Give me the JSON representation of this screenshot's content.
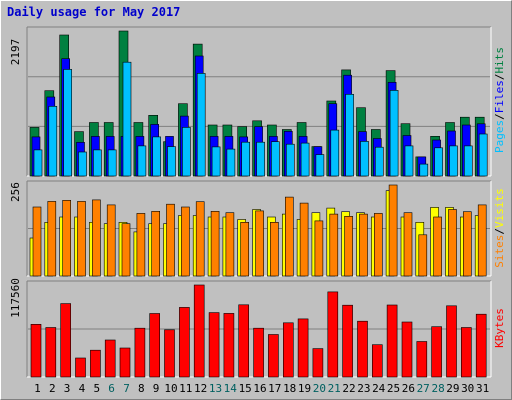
{
  "title": "Daily usage for May 2017",
  "colors": {
    "hits": "#008040",
    "files": "#0000ff",
    "pages": "#00c0ff",
    "visits": "#ffff00",
    "sites": "#ff8000",
    "kbytes": "#ff0000",
    "weekday_label": "#000000",
    "weekend_label": "#006060",
    "grid": "#808080"
  },
  "icons": {
    "separator": "slash"
  },
  "chart_data": [
    {
      "type": "bar",
      "name": "hits-files-pages",
      "max_label": "2197",
      "ylim": [
        0,
        2197
      ],
      "categories": [
        "1",
        "2",
        "3",
        "4",
        "5",
        "6",
        "7",
        "8",
        "9",
        "10",
        "11",
        "12",
        "13",
        "14",
        "15",
        "16",
        "17",
        "18",
        "19",
        "20",
        "21",
        "22",
        "23",
        "24",
        "25",
        "26",
        "27",
        "28",
        "29",
        "30",
        "31"
      ],
      "series": [
        {
          "name": "Hits",
          "values": [
            736,
            1293,
            2136,
            673,
            810,
            810,
            2197,
            810,
            919,
            519,
            1096,
            1998,
            772,
            772,
            749,
            837,
            772,
            704,
            810,
            446,
            1136,
            1608,
            1035,
            704,
            1597,
            793,
            290,
            602,
            810,
            891,
            891
          ]
        },
        {
          "name": "Files",
          "values": [
            593,
            1197,
            1778,
            511,
            600,
            600,
            600,
            600,
            782,
            600,
            907,
            1818,
            600,
            600,
            593,
            749,
            600,
            677,
            600,
            446,
            1096,
            1527,
            673,
            568,
            1419,
            613,
            290,
            546,
            682,
            773,
            791
          ]
        },
        {
          "name": "Pages",
          "values": [
            395,
            1056,
            1615,
            364,
            395,
            395,
            1725,
            456,
            593,
            446,
            736,
            1555,
            441,
            407,
            512,
            512,
            519,
            482,
            499,
            325,
            695,
            1238,
            525,
            436,
            1297,
            456,
            181,
            428,
            456,
            456,
            637
          ]
        }
      ]
    },
    {
      "type": "bar",
      "name": "visits-sites",
      "max_label": "256",
      "ylim": [
        0,
        256
      ],
      "categories": [
        "1",
        "2",
        "3",
        "4",
        "5",
        "6",
        "7",
        "8",
        "9",
        "10",
        "11",
        "12",
        "13",
        "14",
        "15",
        "16",
        "17",
        "18",
        "19",
        "20",
        "21",
        "22",
        "23",
        "24",
        "25",
        "26",
        "27",
        "28",
        "29",
        "30",
        "31"
      ],
      "series": [
        {
          "name": "Visits",
          "values": [
            107,
            151,
            166,
            166,
            151,
            147,
            151,
            124,
            147,
            147,
            170,
            170,
            166,
            166,
            159,
            187,
            166,
            174,
            159,
            178,
            191,
            181,
            178,
            166,
            240,
            166,
            151,
            193,
            193,
            166,
            170
          ]
        },
        {
          "name": "Sites",
          "values": [
            194,
            210,
            213,
            210,
            214,
            200,
            147,
            176,
            182,
            202,
            194,
            209,
            182,
            178,
            151,
            183,
            151,
            222,
            205,
            155,
            174,
            168,
            174,
            176,
            256,
            178,
            116,
            166,
            187,
            181,
            200
          ]
        }
      ]
    },
    {
      "type": "bar",
      "name": "kbytes",
      "max_label": "117560",
      "ylim": [
        0,
        117560
      ],
      "categories": [
        "1",
        "2",
        "3",
        "4",
        "5",
        "6",
        "7",
        "8",
        "9",
        "10",
        "11",
        "12",
        "13",
        "14",
        "15",
        "16",
        "17",
        "18",
        "19",
        "20",
        "21",
        "22",
        "23",
        "24",
        "25",
        "26",
        "27",
        "28",
        "29",
        "30",
        "31"
      ],
      "series": [
        {
          "name": "KBytes",
          "values": [
            67300,
            63300,
            93800,
            24300,
            34300,
            47300,
            37000,
            62300,
            81100,
            60300,
            88900,
            117560,
            82300,
            81300,
            92200,
            62300,
            54300,
            69300,
            74300,
            36300,
            108800,
            91800,
            71300,
            41300,
            92000,
            70300,
            45300,
            64300,
            91000,
            63300,
            80300
          ]
        }
      ]
    }
  ],
  "legend": {
    "top": [
      "Pages",
      "Files",
      "Hits"
    ],
    "middle": [
      "Sites",
      "Visits"
    ],
    "bottom": [
      "KBytes"
    ]
  },
  "x_labels": [
    "1",
    "2",
    "3",
    "4",
    "5",
    "6",
    "7",
    "8",
    "9",
    "10",
    "11",
    "12",
    "13",
    "14",
    "15",
    "16",
    "17",
    "18",
    "19",
    "20",
    "21",
    "22",
    "23",
    "24",
    "25",
    "26",
    "27",
    "28",
    "29",
    "30",
    "31"
  ],
  "weekend_days": [
    "6",
    "7",
    "13",
    "14",
    "20",
    "21",
    "27",
    "28"
  ]
}
